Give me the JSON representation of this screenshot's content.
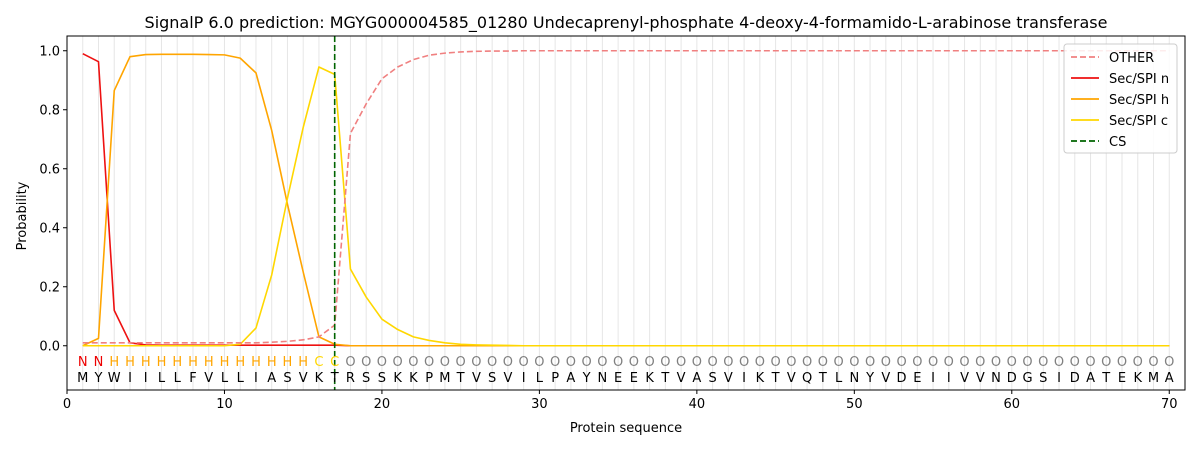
{
  "chart_data": {
    "type": "line",
    "title": "SignalP 6.0 prediction: MGYG000004585_01280 Undecaprenyl-phosphate 4-deoxy-4-formamido-L-arabinose transferase",
    "xlabel": "Protein sequence",
    "ylabel": "Probability",
    "xlim": [
      0,
      71
    ],
    "ylim": [
      -0.15,
      1.05
    ],
    "x_ticks": [
      0,
      10,
      20,
      30,
      40,
      50,
      60,
      70
    ],
    "y_ticks": [
      0.0,
      0.2,
      0.4,
      0.6,
      0.8,
      1.0
    ],
    "x_tick_labels": [
      "0",
      "10",
      "20",
      "30",
      "40",
      "50",
      "60",
      "70"
    ],
    "y_tick_labels": [
      "0.0",
      "0.2",
      "0.4",
      "0.6",
      "0.8",
      "1.0"
    ],
    "grid": "vertical lines at each residue position",
    "legend_position": "top-right",
    "sequence": [
      "M",
      "Y",
      "W",
      "I",
      "I",
      "L",
      "L",
      "F",
      "V",
      "L",
      "L",
      "I",
      "A",
      "S",
      "V",
      "K",
      "T",
      "R",
      "S",
      "S",
      "K",
      "K",
      "P",
      "M",
      "T",
      "V",
      "S",
      "V",
      "I",
      "L",
      "P",
      "A",
      "Y",
      "N",
      "E",
      "E",
      "K",
      "T",
      "V",
      "A",
      "S",
      "V",
      "I",
      "K",
      "T",
      "V",
      "Q",
      "T",
      "L",
      "N",
      "Y",
      "V",
      "D",
      "E",
      "I",
      "I",
      "V",
      "V",
      "N",
      "D",
      "G",
      "S",
      "I",
      "D",
      "A",
      "T",
      "E",
      "K",
      "M",
      "A"
    ],
    "region_labels": [
      "N",
      "N",
      "H",
      "H",
      "H",
      "H",
      "H",
      "H",
      "H",
      "H",
      "H",
      "H",
      "H",
      "H",
      "H",
      "C",
      "C",
      "O",
      "O",
      "O",
      "O",
      "O",
      "O",
      "O",
      "O",
      "O",
      "O",
      "O",
      "O",
      "O",
      "O",
      "O",
      "O",
      "O",
      "O",
      "O",
      "O",
      "O",
      "O",
      "O",
      "O",
      "O",
      "O",
      "O",
      "O",
      "O",
      "O",
      "O",
      "O",
      "O",
      "O",
      "O",
      "O",
      "O",
      "O",
      "O",
      "O",
      "O",
      "O",
      "O",
      "O",
      "O",
      "O",
      "O",
      "O",
      "O",
      "O",
      "O",
      "O",
      "O"
    ],
    "region_colors": {
      "N": "#ee0000",
      "H": "#ffa500",
      "C": "#ffd700",
      "O": "#808080"
    },
    "cleavage_site": 17,
    "series": [
      {
        "name": "OTHER",
        "color": "#f08080",
        "style": "dashed",
        "values": [
          0.01,
          0.01,
          0.01,
          0.01,
          0.01,
          0.01,
          0.01,
          0.01,
          0.01,
          0.01,
          0.01,
          0.01,
          0.012,
          0.015,
          0.02,
          0.03,
          0.07,
          0.72,
          0.82,
          0.905,
          0.945,
          0.97,
          0.985,
          0.992,
          0.996,
          0.998,
          0.999,
          0.999,
          1,
          1,
          1,
          1,
          1,
          1,
          1,
          1,
          1,
          1,
          1,
          1,
          1,
          1,
          1,
          1,
          1,
          1,
          1,
          1,
          1,
          1,
          1,
          1,
          1,
          1,
          1,
          1,
          1,
          1,
          1,
          1,
          1,
          1,
          1,
          1,
          1,
          1,
          1,
          1,
          1,
          1
        ]
      },
      {
        "name": "Sec/SPI n",
        "color": "#ee1111",
        "style": "solid",
        "values": [
          0.99,
          0.963,
          0.12,
          0.01,
          0.003,
          0.002,
          0.002,
          0.002,
          0.002,
          0.002,
          0.002,
          0.002,
          0.002,
          0.002,
          0.002,
          0.002,
          0.002,
          0,
          0,
          0,
          0,
          0,
          0,
          0,
          0,
          0,
          0,
          0,
          0,
          0,
          0,
          0,
          0,
          0,
          0,
          0,
          0,
          0,
          0,
          0,
          0,
          0,
          0,
          0,
          0,
          0,
          0,
          0,
          0,
          0,
          0,
          0,
          0,
          0,
          0,
          0,
          0,
          0,
          0,
          0,
          0,
          0,
          0,
          0,
          0,
          0,
          0,
          0,
          0,
          0
        ]
      },
      {
        "name": "Sec/SPI h",
        "color": "#ffa500",
        "style": "solid",
        "values": [
          0.0,
          0.025,
          0.865,
          0.98,
          0.987,
          0.988,
          0.988,
          0.988,
          0.987,
          0.986,
          0.975,
          0.925,
          0.73,
          0.48,
          0.25,
          0.03,
          0.005,
          0,
          0,
          0,
          0,
          0,
          0,
          0,
          0,
          0,
          0,
          0,
          0,
          0,
          0,
          0,
          0,
          0,
          0,
          0,
          0,
          0,
          0,
          0,
          0,
          0,
          0,
          0,
          0,
          0,
          0,
          0,
          0,
          0,
          0,
          0,
          0,
          0,
          0,
          0,
          0,
          0,
          0,
          0,
          0,
          0,
          0,
          0,
          0,
          0,
          0,
          0,
          0,
          0
        ]
      },
      {
        "name": "Sec/SPI c",
        "color": "#ffd700",
        "style": "solid",
        "values": [
          0,
          0,
          0,
          0,
          0,
          0,
          0,
          0,
          0,
          0,
          0.005,
          0.06,
          0.24,
          0.5,
          0.74,
          0.945,
          0.92,
          0.26,
          0.165,
          0.09,
          0.055,
          0.03,
          0.018,
          0.01,
          0.005,
          0.003,
          0.002,
          0.001,
          0,
          0,
          0,
          0,
          0,
          0,
          0,
          0,
          0,
          0,
          0,
          0,
          0,
          0,
          0,
          0,
          0,
          0,
          0,
          0,
          0,
          0,
          0,
          0,
          0,
          0,
          0,
          0,
          0,
          0,
          0,
          0,
          0,
          0,
          0,
          0,
          0,
          0,
          0,
          0,
          0,
          0
        ]
      }
    ],
    "cs_legend": {
      "name": "CS",
      "color": "#006400",
      "style": "dashed"
    }
  }
}
